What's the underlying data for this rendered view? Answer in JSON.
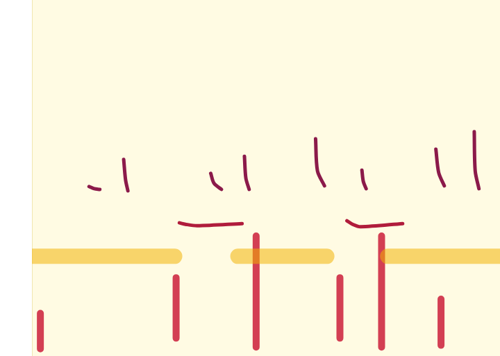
{
  "chart_data": {
    "type": "line",
    "tick_labels": false,
    "grid": false,
    "xlim": [
      0,
      100
    ],
    "ylim": [
      0,
      100
    ],
    "xticks": [
      0,
      100
    ],
    "yticks": [
      0,
      100
    ],
    "series": [
      {
        "color": "#f2b200",
        "line_style": "band",
        "x": [
          0,
          30.5,
          null,
          44,
          63,
          null,
          76,
          100
        ],
        "values": [
          28,
          28,
          null,
          28,
          28,
          null,
          28,
          28
        ]
      },
      {
        "color": "#c8102e",
        "line_style": "burst",
        "x": [
          1.8,
          1.8,
          null,
          30.8,
          30.8,
          null,
          47.9,
          47.9,
          null,
          65.8,
          65.8,
          null,
          74.7,
          74.7,
          null,
          87.4,
          87.4
        ],
        "values": [
          12,
          2,
          null,
          22,
          5,
          null,
          33.7,
          2.5,
          null,
          22,
          5,
          null,
          33.7,
          2.5,
          null,
          16,
          3
        ]
      },
      {
        "color": "#8b1a4a",
        "line_style": "solid",
        "x": [
          12.2,
          13.3,
          14.5,
          null,
          19.6,
          20.0,
          20.5,
          null,
          38.2,
          38.9,
          40.5,
          null,
          45.4,
          45.7,
          46.4,
          null,
          60.6,
          61.0,
          62.5,
          null,
          70.5,
          70.8,
          71.4,
          null,
          86.3,
          86.9,
          88.1,
          null,
          94.5,
          94.7,
          95.5
        ],
        "values": [
          47.6,
          47.0,
          46.8,
          null,
          55.2,
          49.5,
          46.4,
          null,
          51.3,
          48.5,
          46.8,
          null,
          56.1,
          50.0,
          46.8,
          null,
          61.0,
          52.0,
          47.8,
          null,
          52.2,
          49.0,
          47.0,
          null,
          58.1,
          51.5,
          47.8,
          null,
          63.0,
          52.0,
          47.0
        ]
      },
      {
        "color": "#b01c3c",
        "line_style": "solid",
        "x": [
          31.5,
          32.8,
          35.3,
          44.9,
          null,
          67.3,
          68.5,
          70.2,
          79.2
        ],
        "values": [
          37.4,
          37.0,
          36.6,
          37.2,
          null,
          38.0,
          37.0,
          36.3,
          37.2
        ]
      }
    ]
  }
}
